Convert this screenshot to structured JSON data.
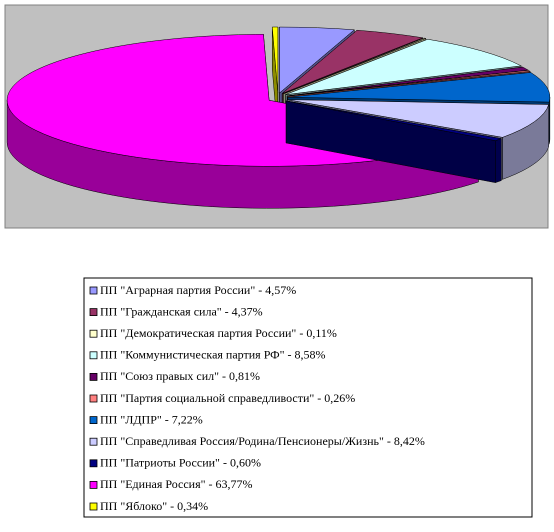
{
  "chart_data": {
    "type": "pie3d",
    "categories": [
      "ПП \"Аграрная партия России\" - 4,57%",
      "ПП \"Гражданская сила\" - 4,37%",
      "ПП \"Демократическая партия России\" - 0,11%",
      "ПП \"Коммунистическая партия РФ\" - 8,58%",
      "ПП \"Союз правых сил\" - 0,81%",
      "ПП \"Партия социальной справедливости\" - 0,26%",
      "ПП \"ЛДПР\" - 7,22%",
      "ПП \"Справедливая Россия/Родина/Пенсионеры/Жизнь\" - 8,42%",
      "ПП \"Патриоты России\" - 0,60%",
      "ПП \"Единая Россия\" - 63,77%",
      "ПП \"Яблоко\" - 0,34%"
    ],
    "values": [
      4.57,
      4.37,
      0.11,
      8.58,
      0.81,
      0.26,
      7.22,
      8.42,
      0.6,
      63.77,
      0.34
    ],
    "colors": [
      "#9999ff",
      "#993366",
      "#ffffcc",
      "#ccffff",
      "#660066",
      "#ff8080",
      "#0066cc",
      "#ccccff",
      "#000080",
      "#ff00ff",
      "#ffff00"
    ],
    "legend": "bottom"
  }
}
